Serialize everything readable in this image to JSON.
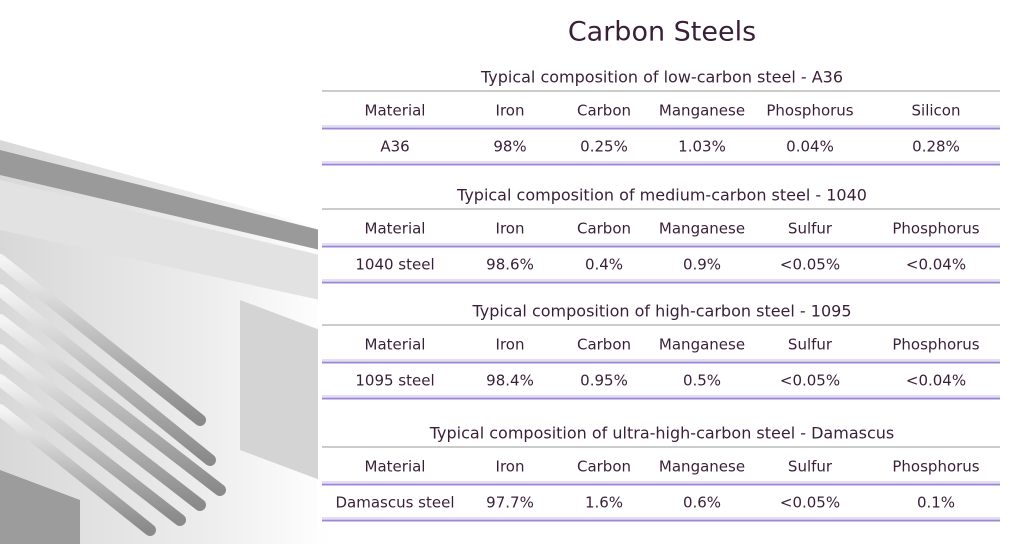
{
  "title": "Carbon Steels",
  "tables": [
    {
      "caption": "Typical composition of low-carbon steel - A36",
      "headers": [
        "Material",
        "Iron",
        "Carbon",
        "Manganese",
        "Phosphorus",
        "Silicon"
      ],
      "row": [
        "A36",
        "98%",
        "0.25%",
        "1.03%",
        "0.04%",
        "0.28%"
      ]
    },
    {
      "caption": "Typical composition of medium-carbon steel - 1040",
      "headers": [
        "Material",
        "Iron",
        "Carbon",
        "Manganese",
        "Sulfur",
        "Phosphorus"
      ],
      "row": [
        "1040 steel",
        "98.6%",
        "0.4%",
        "0.9%",
        "<0.05%",
        "<0.04%"
      ]
    },
    {
      "caption": "Typical composition of high-carbon steel - 1095",
      "headers": [
        "Material",
        "Iron",
        "Carbon",
        "Manganese",
        "Sulfur",
        "Phosphorus"
      ],
      "row": [
        "1095 steel",
        "98.4%",
        "0.95%",
        "0.5%",
        "<0.05%",
        "<0.04%"
      ]
    },
    {
      "caption": "Typical composition of ultra-high-carbon steel - Damascus",
      "headers": [
        "Material",
        "Iron",
        "Carbon",
        "Manganese",
        "Sulfur",
        "Phosphorus"
      ],
      "row": [
        "Damascus steel",
        "97.7%",
        "1.6%",
        "0.6%",
        "<0.05%",
        "0.1%"
      ]
    }
  ]
}
